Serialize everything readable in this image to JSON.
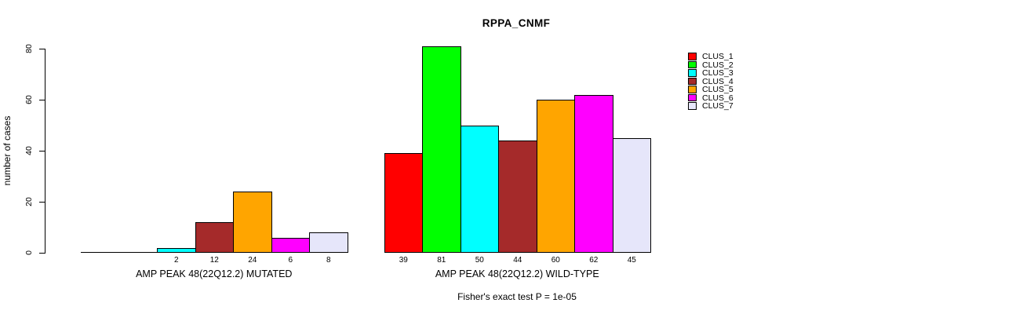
{
  "chart_data": {
    "type": "bar",
    "title": "RPPA_CNMF",
    "ylabel": "number of cases",
    "ylim": [
      0,
      80
    ],
    "yticks": [
      0,
      20,
      40,
      60,
      80
    ],
    "grid": false,
    "legend_position": "right-outside-top",
    "series": [
      {
        "name": "CLUS_1",
        "color": "#FF0000"
      },
      {
        "name": "CLUS_2",
        "color": "#00FF00"
      },
      {
        "name": "CLUS_3",
        "color": "#00FFFF"
      },
      {
        "name": "CLUS_4",
        "color": "#A52A2A"
      },
      {
        "name": "CLUS_5",
        "color": "#FFA500"
      },
      {
        "name": "CLUS_6",
        "color": "#FF00FF"
      },
      {
        "name": "CLUS_7",
        "color": "#E6E6FA"
      }
    ],
    "groups": [
      {
        "label": "AMP PEAK 48(22Q12.2) MUTATED",
        "values": [
          0,
          0,
          2,
          12,
          24,
          6,
          8
        ]
      },
      {
        "label": "AMP PEAK 48(22Q12.2) WILD-TYPE",
        "values": [
          39,
          81,
          50,
          44,
          60,
          62,
          45
        ]
      }
    ],
    "annotation": "Fisher's exact test P = 1e-05"
  }
}
